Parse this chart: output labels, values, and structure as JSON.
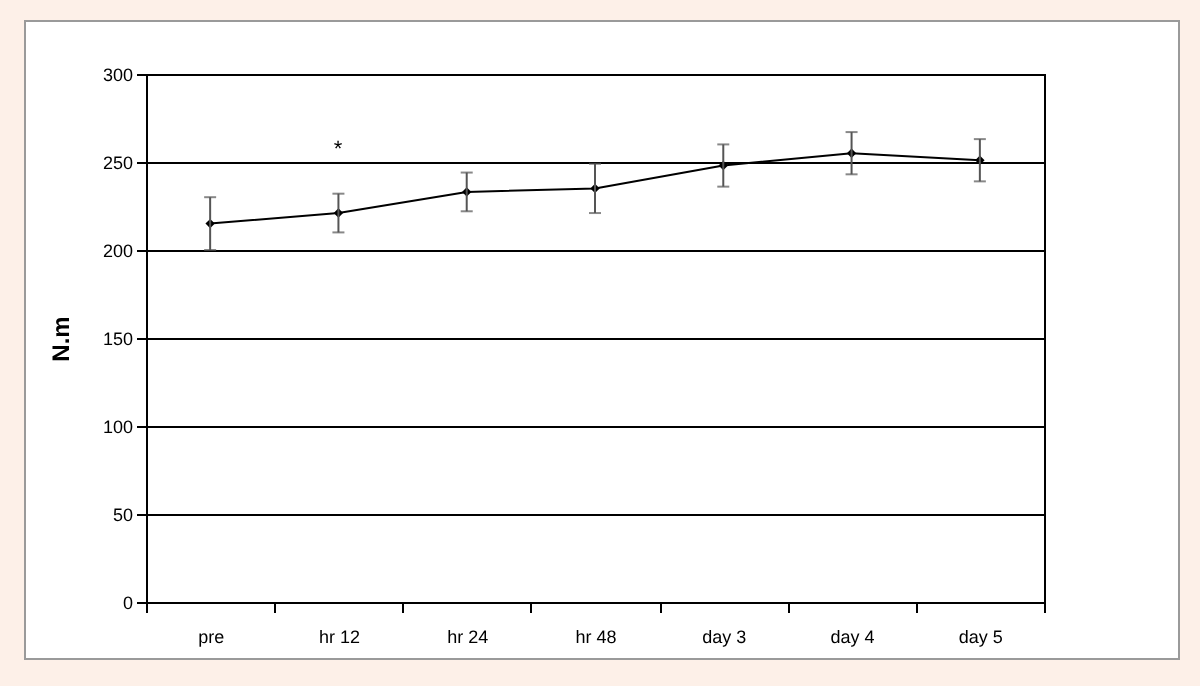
{
  "chart_data": {
    "type": "line",
    "ylabel": "N.m",
    "categories": [
      "pre",
      "hr 12",
      "hr 24",
      "hr 48",
      "day 3",
      "day 4",
      "day 5"
    ],
    "series": [
      {
        "color": "#000000",
        "values": [
          215,
          221,
          233,
          235,
          248,
          255,
          251
        ],
        "errors": [
          15,
          11,
          11,
          14,
          12,
          12,
          12
        ]
      }
    ],
    "annotations": [
      "*"
    ],
    "ylim": [
      0,
      300
    ],
    "yticks": [
      0,
      50,
      100,
      150,
      200,
      250,
      300
    ],
    "grid": "y",
    "marker": "diamond",
    "line_style": "solid"
  }
}
